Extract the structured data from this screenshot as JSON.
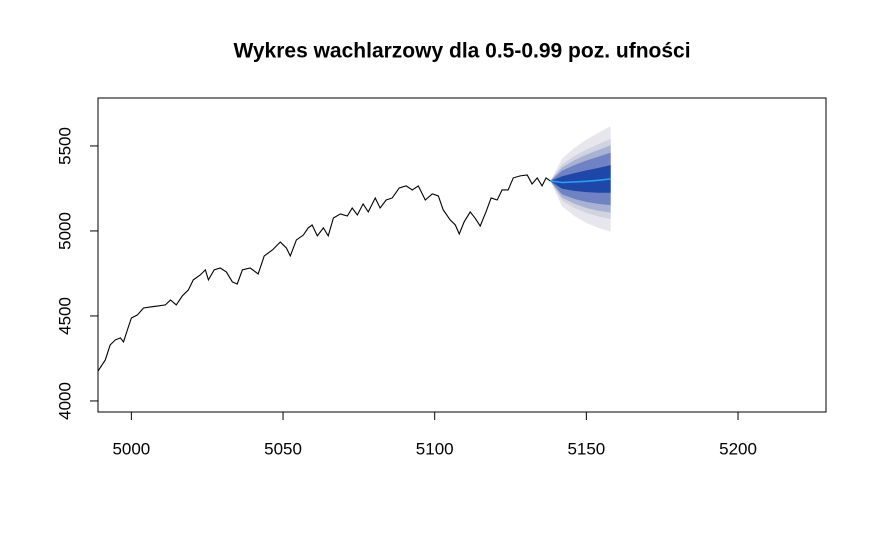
{
  "chart_data": {
    "type": "fan",
    "title": "Wykres wachlarzowy dla 0.5-0.99 poz. ufności",
    "xlim": [
      4989,
      5229
    ],
    "ylim": [
      3935,
      5782
    ],
    "xticks": [
      5000,
      5050,
      5100,
      5150,
      5200
    ],
    "yticks": [
      4000,
      4500,
      5000,
      5500
    ],
    "series": [
      {
        "color": "#000000",
        "x": [
          4989,
          4991.4,
          4993,
          4994.7,
          4996.4,
          4997.4,
          4998.7,
          5000,
          5002,
          5004,
          5006.3,
          5008.9,
          5011.2,
          5012.9,
          5014.8,
          5016.8,
          5018.8,
          5020.4,
          5022.7,
          5024.4,
          5025.4,
          5027.3,
          5029.3,
          5031.3,
          5033.3,
          5034.9,
          5036.6,
          5039.2,
          5041.8,
          5043.8,
          5046.5,
          5049.1,
          5051.1,
          5052.4,
          5054.4,
          5056.7,
          5058.3,
          5059.6,
          5061.3,
          5063.3,
          5064.9,
          5066.6,
          5068.9,
          5071.2,
          5072.8,
          5074.5,
          5076.4,
          5078.1,
          5080.4,
          5082,
          5084,
          5086,
          5088.3,
          5090.6,
          5092.6,
          5094.6,
          5096.9,
          5099.2,
          5101.2,
          5102.8,
          5105.1,
          5106.8,
          5108.1,
          5109.7,
          5111.7,
          5113.3,
          5115,
          5116.9,
          5118.6,
          5120.6,
          5122.2,
          5124.2,
          5125.9,
          5128.2,
          5130.5,
          5132.1,
          5133.8,
          5135.4,
          5136.7,
          5138.1
        ],
        "values": [
          4176,
          4241,
          4329,
          4359,
          4371,
          4347,
          4418,
          4488,
          4506,
          4547,
          4553,
          4559,
          4565,
          4594,
          4565,
          4618,
          4653,
          4712,
          4741,
          4771,
          4712,
          4771,
          4782,
          4759,
          4700,
          4688,
          4771,
          4782,
          4747,
          4853,
          4888,
          4935,
          4900,
          4853,
          4947,
          4976,
          5018,
          5035,
          4971,
          5018,
          4971,
          5076,
          5100,
          5088,
          5135,
          5094,
          5159,
          5112,
          5194,
          5135,
          5182,
          5194,
          5253,
          5265,
          5241,
          5265,
          5182,
          5218,
          5206,
          5124,
          5065,
          5035,
          4982,
          5053,
          5112,
          5076,
          5029,
          5112,
          5194,
          5182,
          5241,
          5241,
          5312,
          5324,
          5329,
          5276,
          5312,
          5265,
          5312,
          5294
        ]
      }
    ],
    "forecast": {
      "x": [
        5138.1,
        5142,
        5146,
        5150,
        5154,
        5158
      ],
      "median": [
        5294,
        5285,
        5288,
        5292,
        5298,
        5306
      ],
      "median_color": "#2a9df4",
      "bands": [
        {
          "color": "#e6e6ec",
          "upper": [
            5294,
            5425,
            5488,
            5537,
            5578,
            5616
          ],
          "lower": [
            5294,
            5145,
            5088,
            5047,
            5018,
            4996
          ]
        },
        {
          "color": "#d0d3e0",
          "upper": [
            5294,
            5392,
            5440,
            5478,
            5511,
            5542
          ],
          "lower": [
            5294,
            5178,
            5136,
            5106,
            5085,
            5070
          ]
        },
        {
          "color": "#a9b2d3",
          "upper": [
            5294,
            5374,
            5416,
            5449,
            5477,
            5504
          ],
          "lower": [
            5294,
            5196,
            5160,
            5135,
            5119,
            5108
          ]
        },
        {
          "color": "#6f83c4",
          "upper": [
            5294,
            5355,
            5387,
            5414,
            5437,
            5460
          ],
          "lower": [
            5294,
            5215,
            5189,
            5170,
            5159,
            5152
          ]
        },
        {
          "color": "#1f47a8",
          "upper": [
            5294,
            5322,
            5340,
            5356,
            5371,
            5387
          ],
          "lower": [
            5294,
            5248,
            5236,
            5228,
            5225,
            5225
          ]
        }
      ]
    }
  }
}
